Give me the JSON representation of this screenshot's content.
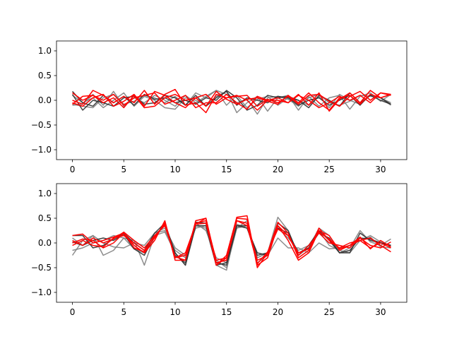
{
  "chart_data": [
    {
      "type": "line",
      "title": "",
      "xlabel": "",
      "ylabel": "",
      "xlim": [
        -1.55,
        32.55
      ],
      "ylim": [
        -1.2,
        1.2
      ],
      "xticks": [
        0,
        5,
        10,
        15,
        20,
        25,
        30
      ],
      "xtick_labels": [
        "0",
        "5",
        "10",
        "15",
        "20",
        "25",
        "30"
      ],
      "yticks": [
        -1.0,
        -0.5,
        0.0,
        0.5,
        1.0
      ],
      "ytick_labels": [
        "−1.0",
        "−0.5",
        "0.0",
        "0.5",
        "1.0"
      ],
      "grid": false,
      "legend": "none",
      "series": [
        {
          "color": "#808080",
          "values": [
            -0.08,
            -0.12,
            -0.15,
            0.05,
            0.12,
            -0.08,
            -0.02,
            0.1,
            0.05,
            -0.05,
            0.08,
            -0.1,
            0.15,
            0.05,
            0.2,
            0.12,
            -0.05,
            0.02,
            -0.28,
            0.05,
            0.08,
            0.02,
            -0.12,
            0.05,
            0.12,
            -0.05,
            -0.1,
            -0.02,
            0.1,
            0.08,
            0.05,
            -0.05
          ]
        },
        {
          "color": "#808080",
          "values": [
            0.1,
            -0.05,
            0.05,
            -0.15,
            0.0,
            0.15,
            -0.12,
            0.08,
            0.0,
            -0.15,
            -0.18,
            0.05,
            0.0,
            -0.1,
            0.08,
            0.18,
            -0.25,
            -0.05,
            0.08,
            -0.22,
            0.05,
            0.1,
            -0.2,
            0.08,
            -0.12,
            0.05,
            0.1,
            -0.18,
            0.08,
            0.15,
            -0.02,
            0.12
          ]
        },
        {
          "color": "#808080",
          "values": [
            -0.1,
            -0.08,
            0.12,
            -0.1,
            0.18,
            -0.12,
            0.05,
            -0.05,
            0.1,
            0.0,
            -0.12,
            0.1,
            -0.05,
            0.08,
            0.2,
            -0.1,
            0.1,
            -0.15,
            0.02,
            0.08,
            -0.1,
            0.05,
            0.0,
            -0.1,
            0.08,
            -0.15,
            0.12,
            0.0,
            -0.08,
            0.1,
            0.05,
            -0.1
          ]
        },
        {
          "color": "#303030",
          "values": [
            0.18,
            -0.05,
            -0.12,
            0.1,
            -0.05,
            0.08,
            -0.1,
            0.12,
            0.02,
            0.05,
            -0.05,
            0.0,
            -0.08,
            0.05,
            0.0,
            0.2,
            0.05,
            -0.2,
            -0.1,
            0.1,
            0.05,
            0.08,
            0.0,
            -0.15,
            0.1,
            0.0,
            -0.12,
            0.15,
            -0.05,
            0.1,
            0.0,
            -0.08
          ]
        },
        {
          "color": "#303030",
          "values": [
            0.12,
            -0.2,
            0.0,
            -0.05,
            -0.12,
            0.05,
            0.08,
            -0.08,
            -0.05,
            0.1,
            0.05,
            -0.1,
            0.1,
            -0.12,
            0.05,
            0.18,
            -0.1,
            0.05,
            0.0,
            -0.05,
            0.08,
            0.05,
            -0.1,
            0.0,
            0.05,
            -0.1,
            0.0,
            0.1,
            -0.1,
            0.12,
            0.05,
            -0.08
          ]
        },
        {
          "color": "#ff0000",
          "values": [
            0.0,
            -0.08,
            0.2,
            0.1,
            -0.05,
            0.08,
            -0.05,
            0.2,
            -0.08,
            0.12,
            0.22,
            -0.1,
            -0.05,
            -0.25,
            0.12,
            0.05,
            0.1,
            0.0,
            -0.2,
            0.0,
            0.05,
            -0.05,
            0.12,
            -0.1,
            0.15,
            -0.22,
            0.02,
            0.15,
            -0.05,
            0.2,
            0.05,
            0.12
          ]
        },
        {
          "color": "#ff0000",
          "values": [
            -0.05,
            -0.12,
            0.05,
            0.12,
            -0.12,
            -0.02,
            0.12,
            -0.12,
            0.18,
            0.1,
            -0.05,
            -0.15,
            0.05,
            0.12,
            -0.08,
            0.05,
            0.08,
            0.1,
            -0.12,
            0.02,
            -0.05,
            0.08,
            -0.08,
            0.1,
            0.12,
            -0.02,
            -0.12,
            0.08,
            0.18,
            0.0,
            0.15,
            0.1
          ]
        },
        {
          "color": "#ff0000",
          "values": [
            0.15,
            0.0,
            0.1,
            -0.05,
            0.05,
            -0.15,
            0.1,
            -0.15,
            -0.12,
            0.05,
            0.12,
            0.0,
            0.05,
            -0.12,
            0.18,
            0.02,
            -0.08,
            0.02,
            0.05,
            -0.02,
            -0.08,
            0.1,
            -0.05,
            0.15,
            -0.05,
            -0.2,
            0.05,
            0.1,
            -0.08,
            0.12,
            0.05,
            0.12
          ]
        },
        {
          "color": "#ff0000",
          "values": [
            -0.08,
            0.08,
            0.1,
            0.0,
            0.12,
            -0.1,
            0.05,
            0.1,
            0.15,
            -0.08,
            0.0,
            0.1,
            -0.15,
            -0.05,
            -0.05,
            0.12,
            -0.05,
            -0.18,
            0.08,
            0.0,
            0.0,
            -0.05,
            0.1,
            0.0,
            -0.15,
            -0.05,
            0.08,
            0.0,
            0.1,
            -0.05,
            0.15,
            0.12
          ]
        }
      ]
    },
    {
      "type": "line",
      "title": "",
      "xlabel": "",
      "ylabel": "",
      "xlim": [
        -1.55,
        32.55
      ],
      "ylim": [
        -1.2,
        1.2
      ],
      "xticks": [
        0,
        5,
        10,
        15,
        20,
        25,
        30
      ],
      "xtick_labels": [
        "0",
        "5",
        "10",
        "15",
        "20",
        "25",
        "30"
      ],
      "yticks": [
        -1.0,
        -0.5,
        0.0,
        0.5,
        1.0
      ],
      "ytick_labels": [
        "−1.0",
        "−0.5",
        "0.0",
        "0.5",
        "1.0"
      ],
      "grid": false,
      "legend": "none",
      "series": [
        {
          "color": "#808080",
          "values": [
            -0.25,
            0.05,
            0.15,
            -0.25,
            -0.15,
            0.1,
            0.05,
            -0.45,
            0.15,
            0.22,
            -0.2,
            -0.45,
            0.35,
            0.3,
            -0.45,
            -0.55,
            0.38,
            0.3,
            -0.3,
            -0.2,
            0.52,
            0.25,
            -0.25,
            -0.1,
            0.3,
            0.15,
            -0.2,
            -0.1,
            0.25,
            0.02,
            -0.05,
            0.08
          ]
        },
        {
          "color": "#808080",
          "values": [
            -0.15,
            -0.1,
            0.0,
            0.05,
            0.15,
            0.1,
            -0.12,
            -0.2,
            0.2,
            0.25,
            -0.15,
            -0.3,
            0.4,
            0.25,
            -0.3,
            -0.4,
            0.3,
            0.45,
            -0.4,
            -0.25,
            0.1,
            -0.1,
            -0.1,
            -0.2,
            0.0,
            -0.12,
            -0.1,
            -0.05,
            0.05,
            0.15,
            0.02,
            -0.05
          ]
        },
        {
          "color": "#808080",
          "values": [
            0.1,
            -0.05,
            0.15,
            0.0,
            -0.08,
            -0.1,
            0.0,
            -0.05,
            0.2,
            0.3,
            -0.1,
            -0.25,
            0.3,
            0.35,
            -0.35,
            -0.5,
            0.3,
            0.35,
            -0.3,
            -0.2,
            0.3,
            0.1,
            -0.15,
            -0.05,
            0.25,
            -0.05,
            -0.15,
            -0.2,
            0.05,
            0.12,
            -0.08,
            -0.1
          ]
        },
        {
          "color": "#303030",
          "values": [
            0.02,
            -0.05,
            0.05,
            0.1,
            0.05,
            0.18,
            -0.12,
            -0.25,
            0.15,
            0.35,
            -0.25,
            -0.4,
            0.42,
            0.4,
            -0.4,
            -0.45,
            0.35,
            0.3,
            -0.2,
            -0.25,
            0.4,
            0.25,
            -0.25,
            -0.05,
            0.25,
            0.05,
            -0.2,
            -0.15,
            0.1,
            0.08,
            0.0,
            -0.05
          ]
        },
        {
          "color": "#303030",
          "values": [
            0.15,
            0.15,
            -0.1,
            -0.05,
            0.08,
            0.2,
            0.0,
            -0.15,
            0.2,
            0.4,
            -0.2,
            -0.45,
            0.35,
            0.35,
            -0.45,
            -0.4,
            0.35,
            0.35,
            -0.25,
            -0.2,
            0.3,
            0.2,
            -0.2,
            -0.1,
            0.2,
            0.1,
            -0.2,
            -0.2,
            0.2,
            0.05,
            0.0,
            -0.05
          ]
        },
        {
          "color": "#ff0000",
          "values": [
            0.15,
            0.18,
            0.0,
            0.05,
            0.12,
            0.2,
            -0.05,
            -0.2,
            0.05,
            0.45,
            -0.35,
            -0.35,
            0.45,
            0.5,
            -0.45,
            -0.3,
            0.5,
            0.48,
            -0.45,
            -0.3,
            0.35,
            0.05,
            -0.35,
            -0.2,
            0.25,
            0.15,
            -0.15,
            -0.05,
            0.05,
            -0.1,
            0.0,
            -0.1
          ]
        },
        {
          "color": "#ff0000",
          "values": [
            -0.05,
            0.05,
            -0.05,
            -0.08,
            0.1,
            0.15,
            0.0,
            -0.15,
            0.1,
            0.42,
            -0.3,
            -0.2,
            0.38,
            0.4,
            -0.45,
            -0.25,
            0.52,
            0.55,
            -0.5,
            -0.2,
            0.42,
            0.2,
            -0.3,
            -0.15,
            0.3,
            0.05,
            -0.1,
            0.0,
            0.05,
            0.1,
            -0.05,
            -0.18
          ]
        },
        {
          "color": "#ff0000",
          "values": [
            0.05,
            -0.05,
            0.1,
            0.0,
            0.08,
            0.22,
            0.05,
            -0.1,
            0.15,
            0.35,
            -0.28,
            -0.35,
            0.4,
            0.45,
            -0.35,
            -0.3,
            0.45,
            0.4,
            -0.35,
            -0.25,
            0.35,
            0.15,
            -0.25,
            -0.05,
            0.2,
            0.0,
            -0.05,
            -0.1,
            0.1,
            -0.05,
            -0.1,
            0.02
          ]
        },
        {
          "color": "#ff0000",
          "values": [
            0.0,
            0.08,
            0.05,
            -0.1,
            0.0,
            0.2,
            -0.1,
            -0.18,
            0.12,
            0.38,
            -0.3,
            -0.25,
            0.38,
            0.5,
            -0.4,
            -0.35,
            0.45,
            0.35,
            -0.42,
            -0.18,
            0.28,
            0.15,
            -0.2,
            -0.12,
            0.22,
            0.08,
            -0.12,
            -0.05,
            0.12,
            -0.12,
            0.05,
            -0.08
          ]
        }
      ]
    }
  ]
}
